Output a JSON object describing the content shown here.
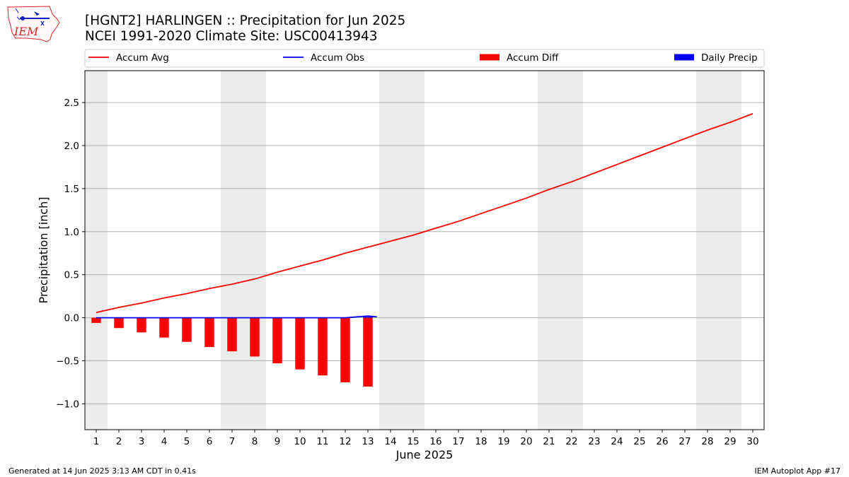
{
  "logo": {
    "text": "IEM",
    "color": "#d62728"
  },
  "title": {
    "line1": "[HGNT2] HARLINGEN :: Precipitation for Jun 2025",
    "line2": "NCEI 1991-2020 Climate Site: USC00413943"
  },
  "footer": {
    "left": "Generated at 14 Jun 2025 3:13 AM CDT in 0.41s",
    "right": "IEM Autoplot App #17"
  },
  "chart_data": {
    "type": "line",
    "xlabel": "June 2025",
    "ylabel": "Precipitation [inch]",
    "xlim": [
      0.5,
      30.5
    ],
    "ylim": [
      -1.3,
      2.87
    ],
    "yticks": [
      -1.0,
      -0.5,
      0.0,
      0.5,
      1.0,
      1.5,
      2.0,
      2.5
    ],
    "ytick_labels": [
      "−1.0",
      "−0.5",
      "0.0",
      "0.5",
      "1.0",
      "1.5",
      "2.0",
      "2.5"
    ],
    "grid": "horizontal",
    "legend_position": "top",
    "weekend_shading": [
      [
        0.5,
        1.5
      ],
      [
        6.5,
        8.5
      ],
      [
        13.5,
        15.5
      ],
      [
        20.5,
        22.5
      ],
      [
        27.5,
        29.5
      ]
    ],
    "shade_color": "#ececec",
    "x": [
      1,
      2,
      3,
      4,
      5,
      6,
      7,
      8,
      9,
      10,
      11,
      12,
      13,
      14,
      15,
      16,
      17,
      18,
      19,
      20,
      21,
      22,
      23,
      24,
      25,
      26,
      27,
      28,
      29,
      30
    ],
    "x_labels": [
      "1",
      "2",
      "3",
      "4",
      "5",
      "6",
      "7",
      "8",
      "9",
      "10",
      "11",
      "12",
      "13",
      "14",
      "15",
      "16",
      "17",
      "18",
      "19",
      "20",
      "21",
      "22",
      "23",
      "24",
      "25",
      "26",
      "27",
      "28",
      "29",
      "30"
    ],
    "series": [
      {
        "name": "Accum Avg",
        "kind": "line",
        "color": "#ff0000",
        "x": [
          1,
          2,
          3,
          4,
          5,
          6,
          7,
          8,
          9,
          10,
          11,
          12,
          13,
          14,
          15,
          16,
          17,
          18,
          19,
          20,
          21,
          22,
          23,
          24,
          25,
          26,
          27,
          28,
          29,
          30
        ],
        "values": [
          0.06,
          0.12,
          0.17,
          0.23,
          0.28,
          0.34,
          0.39,
          0.45,
          0.53,
          0.6,
          0.67,
          0.75,
          0.82,
          0.89,
          0.96,
          1.04,
          1.12,
          1.21,
          1.3,
          1.39,
          1.49,
          1.58,
          1.68,
          1.78,
          1.88,
          1.98,
          2.08,
          2.18,
          2.27,
          2.37
        ]
      },
      {
        "name": "Accum Obs",
        "kind": "line",
        "color": "#0000ff",
        "x": [
          1,
          2,
          3,
          4,
          5,
          6,
          7,
          8,
          9,
          10,
          11,
          12,
          13,
          13.4
        ],
        "values": [
          0,
          0,
          0,
          0,
          0,
          0,
          0,
          0,
          0,
          0,
          0,
          0,
          0.02,
          0.01
        ]
      },
      {
        "name": "Accum Diff",
        "kind": "bar",
        "color": "#ff0000",
        "x": [
          1,
          2,
          3,
          4,
          5,
          6,
          7,
          8,
          9,
          10,
          11,
          12,
          13
        ],
        "values": [
          -0.06,
          -0.12,
          -0.17,
          -0.23,
          -0.28,
          -0.34,
          -0.39,
          -0.45,
          -0.53,
          -0.6,
          -0.67,
          -0.75,
          -0.8
        ]
      },
      {
        "name": "Daily Precip",
        "kind": "bar",
        "color": "#0000ff",
        "x": [
          1,
          2,
          3,
          4,
          5,
          6,
          7,
          8,
          9,
          10,
          11,
          12,
          13
        ],
        "values": [
          0,
          0,
          0,
          0,
          0,
          0,
          0,
          0,
          0,
          0,
          0,
          0,
          0.01
        ]
      }
    ]
  }
}
